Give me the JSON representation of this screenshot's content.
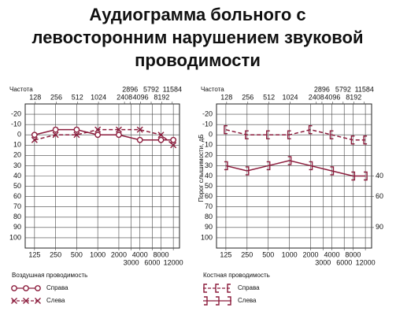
{
  "title": [
    "Аудиограмма больного с",
    "левосторонним нарушением звуковой",
    "проводимости"
  ],
  "chart_data": [
    {
      "type": "line",
      "x_label": "Частота",
      "log_x": true,
      "x": [
        125,
        250,
        500,
        1000,
        2000,
        4000,
        8000,
        12000
      ],
      "xlim": [
        92,
        14700
      ],
      "xticks": [
        125,
        250,
        500,
        1000,
        2000,
        3000,
        4000,
        6000,
        8000,
        12000
      ],
      "xticks_top": [
        128,
        256,
        512,
        1024,
        2408,
        2896,
        4096,
        5792,
        8192,
        11584
      ],
      "ylim": [
        -30,
        110
      ],
      "yticks": [
        -20,
        -10,
        0,
        10,
        20,
        30,
        40,
        50,
        60,
        70,
        80,
        90,
        100
      ],
      "grid": true,
      "legend_title": "Воздушная проводимость",
      "series": [
        {
          "name": "Справа",
          "color": "#8b1c3c",
          "marker": "circle",
          "dashed": false,
          "values": [
            0,
            -5,
            -5,
            0,
            0,
            5,
            5,
            5
          ]
        },
        {
          "name": "Слева",
          "color": "#8b1c3c",
          "marker": "cross",
          "dashed": true,
          "values": [
            5,
            0,
            0,
            -5,
            -5,
            -5,
            0,
            10
          ]
        }
      ]
    },
    {
      "type": "line",
      "x_label": "Частота",
      "y_label": "Порог слышимости, дБ",
      "log_x": true,
      "x": [
        125,
        250,
        500,
        1000,
        2000,
        4000,
        8000,
        12000
      ],
      "xlim": [
        92,
        14700
      ],
      "xticks": [
        125,
        250,
        500,
        1000,
        2000,
        3000,
        4000,
        6000,
        8000,
        12000
      ],
      "xticks_top": [
        128,
        256,
        512,
        1024,
        2408,
        2896,
        4096,
        5792,
        8192,
        11584
      ],
      "ylim": [
        -30,
        110
      ],
      "yticks": [
        -20,
        -10,
        0,
        10,
        20,
        30,
        40,
        50,
        60,
        70,
        80,
        90,
        100
      ],
      "y2lim": [
        -30,
        110
      ],
      "y2ticks": [
        40,
        60,
        90
      ],
      "grid": true,
      "legend_title": "Костная проводимость",
      "series": [
        {
          "name": "Справа",
          "color": "#8b1c3c",
          "marker": "bracket-left",
          "dashed": true,
          "values": [
            -5,
            0,
            0,
            0,
            -5,
            0,
            5,
            5
          ]
        },
        {
          "name": "Слева",
          "color": "#8b1c3c",
          "marker": "bracket-right",
          "dashed": false,
          "values": [
            30,
            35,
            30,
            25,
            30,
            35,
            40,
            40
          ]
        }
      ]
    }
  ]
}
